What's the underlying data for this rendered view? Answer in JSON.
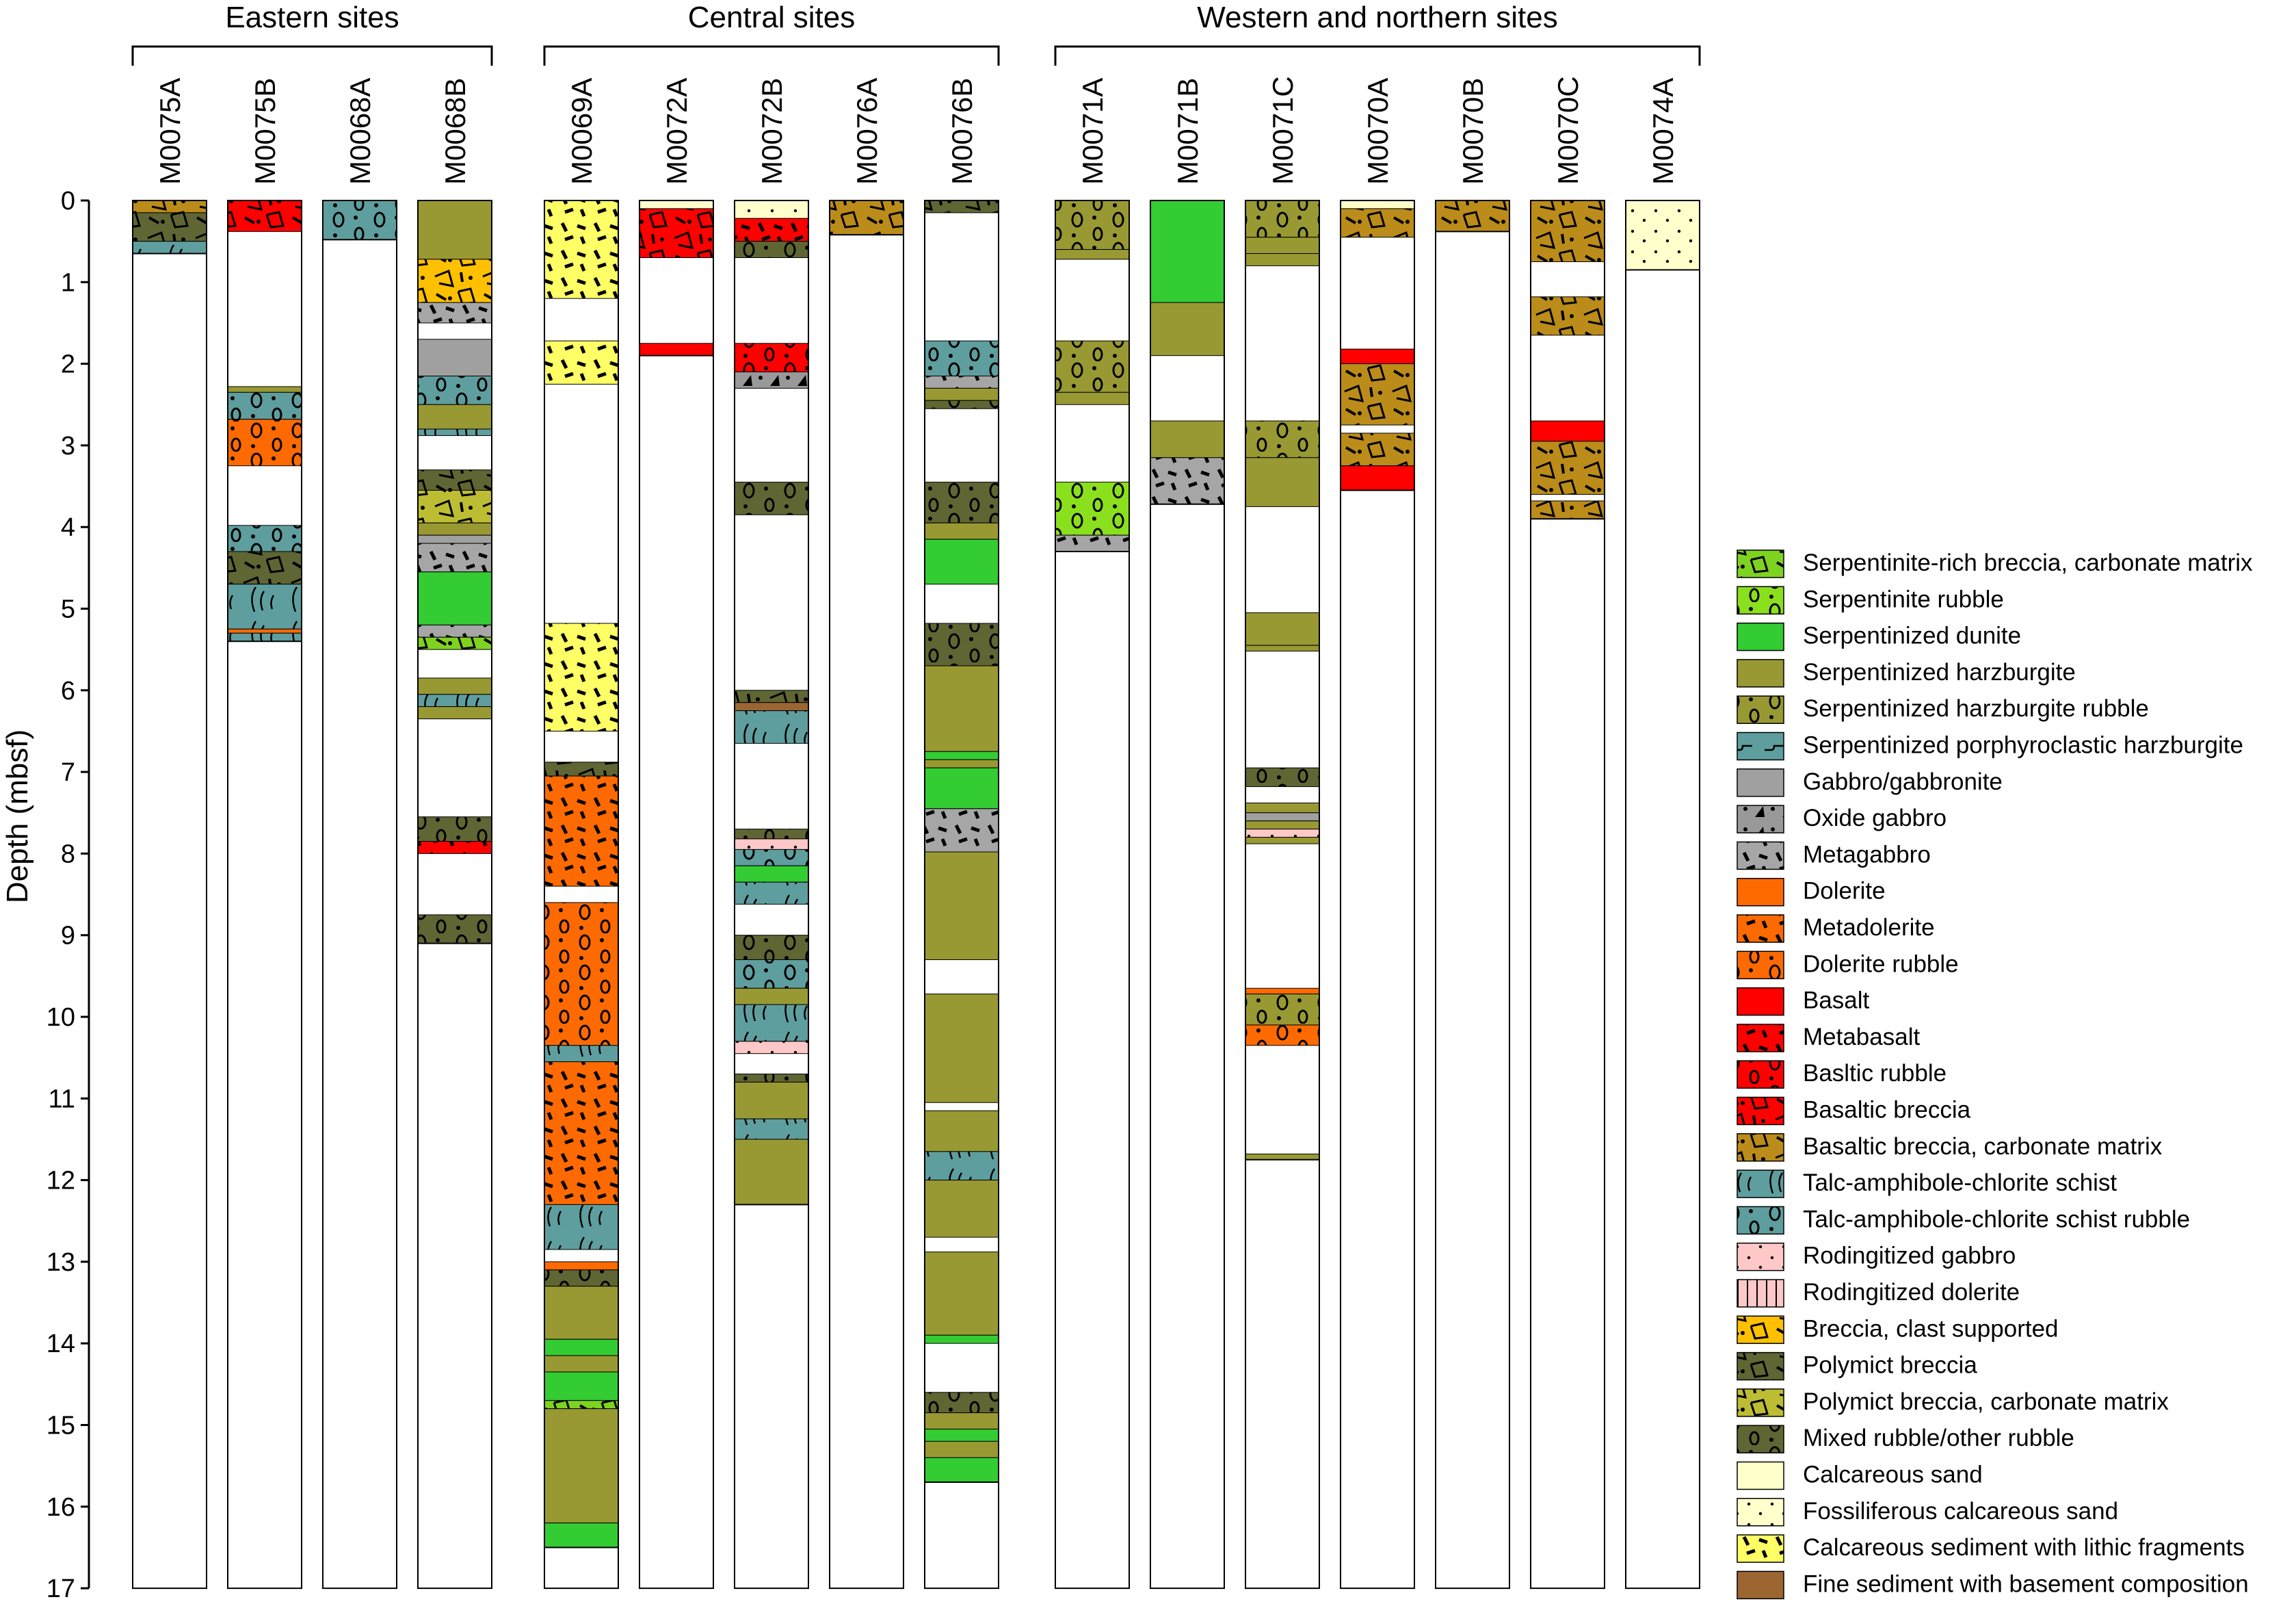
{
  "chart_data": {
    "type": "lithology_logs",
    "ylabel": "Depth (mbsf)",
    "ylim": [
      0,
      17
    ],
    "yticks": [
      0,
      1,
      2,
      3,
      4,
      5,
      6,
      7,
      8,
      9,
      10,
      11,
      12,
      13,
      14,
      15,
      16,
      17
    ],
    "groups": [
      {
        "title": "Eastern sites",
        "holes": [
          "M0075A",
          "M0075B",
          "M0068A",
          "M0068B"
        ]
      },
      {
        "title": "Central sites",
        "holes": [
          "M0069A",
          "M0072A",
          "M0072B",
          "M0076A",
          "M0076B"
        ]
      },
      {
        "title": "Western and northern sites",
        "holes": [
          "M0071A",
          "M0071B",
          "M0071C",
          "M0070A",
          "M0070B",
          "M0070C",
          "M0074A"
        ]
      }
    ],
    "lithologies": [
      {
        "key": "serp_breccia_carb",
        "name": "Serpentinite-rich breccia, carbonate matrix",
        "color": "#7ed321",
        "pattern": "breccia"
      },
      {
        "key": "serp_rubble",
        "name": "Serpentinite rubble",
        "color": "#8be01e",
        "pattern": "rubble"
      },
      {
        "key": "serp_dunite",
        "name": "Serpentinized dunite",
        "color": "#33cc33",
        "pattern": "none"
      },
      {
        "key": "serp_harz",
        "name": "Serpentinized harzburgite",
        "color": "#999933",
        "pattern": "none"
      },
      {
        "key": "serp_harz_rubble",
        "name": "Serpentinized harzburgite rubble",
        "color": "#999933",
        "pattern": "rubble"
      },
      {
        "key": "serp_porph_harz",
        "name": "Serpentinized porphyroclastic harzburgite",
        "color": "#5f9e9e",
        "pattern": "dash"
      },
      {
        "key": "gabbro",
        "name": "Gabbro/gabbronite",
        "color": "#a0a0a0",
        "pattern": "none"
      },
      {
        "key": "oxide_gabbro",
        "name": "Oxide gabbro",
        "color": "#999999",
        "pattern": "triangle"
      },
      {
        "key": "metagabbro",
        "name": "Metagabbro",
        "color": "#a6a6a6",
        "pattern": "meta"
      },
      {
        "key": "dolerite",
        "name": "Dolerite",
        "color": "#ff6a00",
        "pattern": "none"
      },
      {
        "key": "metadolerite",
        "name": "Metadolerite",
        "color": "#ff6a00",
        "pattern": "meta"
      },
      {
        "key": "dolerite_rubble",
        "name": "Dolerite rubble",
        "color": "#ff6a00",
        "pattern": "rubble"
      },
      {
        "key": "basalt",
        "name": "Basalt",
        "color": "#ff0000",
        "pattern": "none"
      },
      {
        "key": "metabasalt",
        "name": "Metabasalt",
        "color": "#ff0000",
        "pattern": "meta"
      },
      {
        "key": "basaltic_rubble",
        "name": "Basltic rubble",
        "color": "#ff0000",
        "pattern": "rubble"
      },
      {
        "key": "basaltic_breccia",
        "name": "Basaltic breccia",
        "color": "#ff0000",
        "pattern": "breccia"
      },
      {
        "key": "basaltic_breccia_carb",
        "name": "Basaltic breccia, carbonate matrix",
        "color": "#bb8c1a",
        "pattern": "breccia"
      },
      {
        "key": "talc_schist",
        "name": "Talc-amphibole-chlorite schist",
        "color": "#5f9e9e",
        "pattern": "schist"
      },
      {
        "key": "talc_schist_rubble",
        "name": "Talc-amphibole-chlorite schist rubble",
        "color": "#5f9e9e",
        "pattern": "rubble"
      },
      {
        "key": "rod_gabbro",
        "name": "Rodingitized gabbro",
        "color": "#ffc8c8",
        "pattern": "dots"
      },
      {
        "key": "rod_dolerite",
        "name": "Rodingitized dolerite",
        "color": "#ffc8c8",
        "pattern": "vlines"
      },
      {
        "key": "breccia_clast",
        "name": "Breccia, clast supported",
        "color": "#ffc000",
        "pattern": "breccia"
      },
      {
        "key": "polymict_breccia",
        "name": "Polymict breccia",
        "color": "#5f6633",
        "pattern": "breccia"
      },
      {
        "key": "polymict_breccia_carb",
        "name": "Polymict breccia, carbonate matrix",
        "color": "#bdbd33",
        "pattern": "breccia"
      },
      {
        "key": "mixed_rubble",
        "name": "Mixed rubble/other rubble",
        "color": "#5f6633",
        "pattern": "rubble"
      },
      {
        "key": "calc_sand",
        "name": "Calcareous sand",
        "color": "#ffffcc",
        "pattern": "none"
      },
      {
        "key": "foss_calc_sand",
        "name": "Fossiliferous calcareous sand",
        "color": "#ffffcc",
        "pattern": "dots"
      },
      {
        "key": "calc_sed_lithic",
        "name": "Calcareous sediment with lithic fragments",
        "color": "#ffff66",
        "pattern": "meta"
      },
      {
        "key": "fine_sed",
        "name": "Fine sediment with basement composition",
        "color": "#9c6633",
        "pattern": "none"
      }
    ],
    "holes": [
      {
        "name": "M0075A",
        "td": 0.65,
        "units": [
          [
            "basaltic_breccia_carb",
            0,
            0.15
          ],
          [
            "polymict_breccia",
            0.15,
            0.5
          ],
          [
            "talc_schist",
            0.5,
            0.65
          ]
        ]
      },
      {
        "name": "M0075B",
        "td": 5.4,
        "units": [
          [
            "basaltic_breccia",
            0,
            0.38
          ],
          [
            "serp_harz",
            2.28,
            2.35
          ],
          [
            "talc_schist_rubble",
            2.35,
            2.68
          ],
          [
            "dolerite_rubble",
            2.68,
            3.25
          ],
          [
            "talc_schist_rubble",
            3.98,
            4.3
          ],
          [
            "polymict_breccia",
            4.3,
            4.7
          ],
          [
            "talc_schist",
            4.7,
            5.25
          ],
          [
            "dolerite",
            5.25,
            5.3
          ],
          [
            "talc_schist",
            5.3,
            5.4
          ]
        ]
      },
      {
        "name": "M0068A",
        "td": 0.48,
        "units": [
          [
            "talc_schist_rubble",
            0,
            0.48
          ]
        ]
      },
      {
        "name": "M0068B",
        "td": 9.1,
        "units": [
          [
            "serp_harz",
            0,
            0.72
          ],
          [
            "breccia_clast",
            0.72,
            1.25
          ],
          [
            "metagabbro",
            1.25,
            1.5
          ],
          [
            "gabbro",
            1.7,
            2.15
          ],
          [
            "talc_schist_rubble",
            2.15,
            2.5
          ],
          [
            "serp_harz",
            2.5,
            2.8
          ],
          [
            "talc_schist",
            2.8,
            2.88
          ],
          [
            "polymict_breccia",
            3.3,
            3.55
          ],
          [
            "polymict_breccia_carb",
            3.55,
            3.95
          ],
          [
            "serp_harz",
            3.95,
            4.1
          ],
          [
            "gabbro",
            4.1,
            4.2
          ],
          [
            "metagabbro",
            4.2,
            4.55
          ],
          [
            "serp_dunite",
            4.55,
            5.2
          ],
          [
            "metagabbro",
            5.2,
            5.35
          ],
          [
            "serp_breccia_carb",
            5.35,
            5.5
          ],
          [
            "serp_harz",
            5.85,
            6.05
          ],
          [
            "talc_schist",
            6.05,
            6.2
          ],
          [
            "serp_harz",
            6.2,
            6.35
          ],
          [
            "mixed_rubble",
            7.55,
            7.85
          ],
          [
            "metabasalt",
            7.85,
            8.0
          ],
          [
            "mixed_rubble",
            8.75,
            9.1
          ]
        ]
      },
      {
        "name": "M0069A",
        "td": 16.5,
        "units": [
          [
            "calc_sed_lithic",
            0,
            1.2
          ],
          [
            "calc_sed_lithic",
            1.72,
            2.25
          ],
          [
            "calc_sed_lithic",
            5.18,
            6.5
          ],
          [
            "polymict_breccia",
            6.88,
            7.05
          ],
          [
            "metadolerite",
            7.05,
            8.4
          ],
          [
            "dolerite_rubble",
            8.6,
            10.35
          ],
          [
            "talc_schist",
            10.35,
            10.55
          ],
          [
            "metadolerite",
            10.55,
            12.3
          ],
          [
            "talc_schist",
            12.3,
            12.85
          ],
          [
            "dolerite",
            13.0,
            13.1
          ],
          [
            "mixed_rubble",
            13.1,
            13.3
          ],
          [
            "serp_harz",
            13.3,
            13.95
          ],
          [
            "serp_dunite",
            13.95,
            14.15
          ],
          [
            "serp_harz",
            14.15,
            14.35
          ],
          [
            "serp_dunite",
            14.35,
            14.7
          ],
          [
            "serp_breccia_carb",
            14.7,
            14.8
          ],
          [
            "serp_harz",
            14.8,
            16.2
          ],
          [
            "serp_dunite",
            16.2,
            16.5
          ]
        ]
      },
      {
        "name": "M0072A",
        "td": 1.9,
        "units": [
          [
            "calc_sand",
            0,
            0.1
          ],
          [
            "basaltic_breccia",
            0.1,
            0.7
          ],
          [
            "basalt",
            1.75,
            1.9
          ]
        ]
      },
      {
        "name": "M0072B",
        "td": 12.3,
        "units": [
          [
            "foss_calc_sand",
            0,
            0.22
          ],
          [
            "metabasalt",
            0.22,
            0.5
          ],
          [
            "mixed_rubble",
            0.5,
            0.7
          ],
          [
            "basaltic_rubble",
            1.75,
            2.1
          ],
          [
            "oxide_gabbro",
            2.1,
            2.3
          ],
          [
            "mixed_rubble",
            3.45,
            3.85
          ],
          [
            "polymict_breccia",
            6.0,
            6.15
          ],
          [
            "fine_sed",
            6.15,
            6.25
          ],
          [
            "talc_schist",
            6.25,
            6.65
          ],
          [
            "mixed_rubble",
            7.7,
            7.82
          ],
          [
            "rod_gabbro",
            7.82,
            7.95
          ],
          [
            "talc_schist_rubble",
            7.95,
            8.15
          ],
          [
            "serp_dunite",
            8.15,
            8.35
          ],
          [
            "talc_schist",
            8.35,
            8.62
          ],
          [
            "mixed_rubble",
            9.0,
            9.3
          ],
          [
            "talc_schist_rubble",
            9.3,
            9.65
          ],
          [
            "serp_harz",
            9.65,
            9.85
          ],
          [
            "talc_schist",
            9.85,
            10.3
          ],
          [
            "rod_gabbro",
            10.3,
            10.45
          ],
          [
            "mixed_rubble",
            10.7,
            10.8
          ],
          [
            "serp_harz",
            10.8,
            11.25
          ],
          [
            "talc_schist",
            11.25,
            11.5
          ],
          [
            "serp_harz",
            11.5,
            12.3
          ]
        ]
      },
      {
        "name": "M0076A",
        "td": 0.42,
        "units": [
          [
            "basaltic_breccia_carb",
            0,
            0.42
          ]
        ]
      },
      {
        "name": "M0076B",
        "td": 15.7,
        "units": [
          [
            "polymict_breccia",
            0,
            0.15
          ],
          [
            "talc_schist_rubble",
            1.72,
            2.15
          ],
          [
            "metagabbro",
            2.15,
            2.3
          ],
          [
            "serp_harz",
            2.3,
            2.45
          ],
          [
            "mixed_rubble",
            2.45,
            2.55
          ],
          [
            "mixed_rubble",
            3.45,
            3.95
          ],
          [
            "serp_harz",
            3.95,
            4.15
          ],
          [
            "serp_dunite",
            4.15,
            4.7
          ],
          [
            "mixed_rubble",
            5.18,
            5.7
          ],
          [
            "serp_harz",
            5.7,
            6.75
          ],
          [
            "serp_dunite",
            6.75,
            6.85
          ],
          [
            "serp_harz",
            6.85,
            6.95
          ],
          [
            "serp_dunite",
            6.95,
            7.45
          ],
          [
            "metagabbro",
            7.45,
            7.98
          ],
          [
            "serp_harz",
            7.98,
            9.3
          ],
          [
            "serp_harz",
            9.72,
            11.05
          ],
          [
            "serp_harz",
            11.15,
            11.65
          ],
          [
            "talc_schist",
            11.65,
            12.0
          ],
          [
            "serp_harz",
            12.0,
            12.7
          ],
          [
            "serp_harz",
            12.88,
            13.9
          ],
          [
            "serp_dunite",
            13.9,
            14.0
          ],
          [
            "mixed_rubble",
            14.6,
            14.85
          ],
          [
            "serp_harz",
            14.85,
            15.05
          ],
          [
            "serp_dunite",
            15.05,
            15.2
          ],
          [
            "serp_harz",
            15.2,
            15.4
          ],
          [
            "serp_dunite",
            15.4,
            15.7
          ]
        ]
      },
      {
        "name": "M0071A",
        "td": 4.3,
        "units": [
          [
            "serp_harz_rubble",
            0,
            0.6
          ],
          [
            "serp_harz",
            0.6,
            0.72
          ],
          [
            "serp_harz_rubble",
            1.72,
            2.35
          ],
          [
            "serp_harz",
            2.35,
            2.5
          ],
          [
            "serp_rubble",
            3.45,
            4.1
          ],
          [
            "metagabbro",
            4.1,
            4.3
          ]
        ]
      },
      {
        "name": "M0071B",
        "td": 3.72,
        "units": [
          [
            "serp_dunite",
            0,
            1.25
          ],
          [
            "serp_harz",
            1.25,
            1.9
          ],
          [
            "serp_harz",
            2.7,
            3.15
          ],
          [
            "metagabbro",
            3.15,
            3.72
          ]
        ]
      },
      {
        "name": "M0071C",
        "td": 11.75,
        "units": [
          [
            "serp_harz_rubble",
            0,
            0.45
          ],
          [
            "serp_harz",
            0.45,
            0.65
          ],
          [
            "serp_harz",
            0.65,
            0.8
          ],
          [
            "serp_harz_rubble",
            2.7,
            3.15
          ],
          [
            "serp_harz",
            3.15,
            3.75
          ],
          [
            "serp_harz",
            5.05,
            5.45
          ],
          [
            "serp_harz",
            5.45,
            5.52
          ],
          [
            "mixed_rubble",
            6.95,
            7.18
          ],
          [
            "serp_harz",
            7.38,
            7.5
          ],
          [
            "gabbro",
            7.5,
            7.6
          ],
          [
            "serp_harz",
            7.6,
            7.7
          ],
          [
            "rod_gabbro",
            7.7,
            7.8
          ],
          [
            "serp_harz",
            7.8,
            7.88
          ],
          [
            "dolerite",
            9.65,
            9.72
          ],
          [
            "serp_harz_rubble",
            9.72,
            10.1
          ],
          [
            "dolerite_rubble",
            10.1,
            10.35
          ],
          [
            "serp_harz",
            11.68,
            11.75
          ]
        ]
      },
      {
        "name": "M0070A",
        "td": 3.55,
        "units": [
          [
            "foss_calc_sand",
            0,
            0.1
          ],
          [
            "basaltic_breccia_carb",
            0.1,
            0.45
          ],
          [
            "basalt",
            1.82,
            2.0
          ],
          [
            "basaltic_breccia_carb",
            2.0,
            2.75
          ],
          [
            "basaltic_breccia_carb",
            2.85,
            3.25
          ],
          [
            "basalt",
            3.25,
            3.55
          ]
        ]
      },
      {
        "name": "M0070B",
        "td": 0.38,
        "units": [
          [
            "basaltic_breccia_carb",
            0,
            0.38
          ]
        ]
      },
      {
        "name": "M0070C",
        "td": 3.9,
        "units": [
          [
            "basaltic_breccia_carb",
            0,
            0.75
          ],
          [
            "basaltic_breccia_carb",
            1.18,
            1.65
          ],
          [
            "basalt",
            2.7,
            2.95
          ],
          [
            "basaltic_breccia_carb",
            2.95,
            3.6
          ],
          [
            "basaltic_breccia_carb",
            3.68,
            3.9
          ]
        ]
      },
      {
        "name": "M0074A",
        "td": 0.85,
        "units": [
          [
            "foss_calc_sand",
            0,
            0.85
          ]
        ]
      }
    ]
  }
}
